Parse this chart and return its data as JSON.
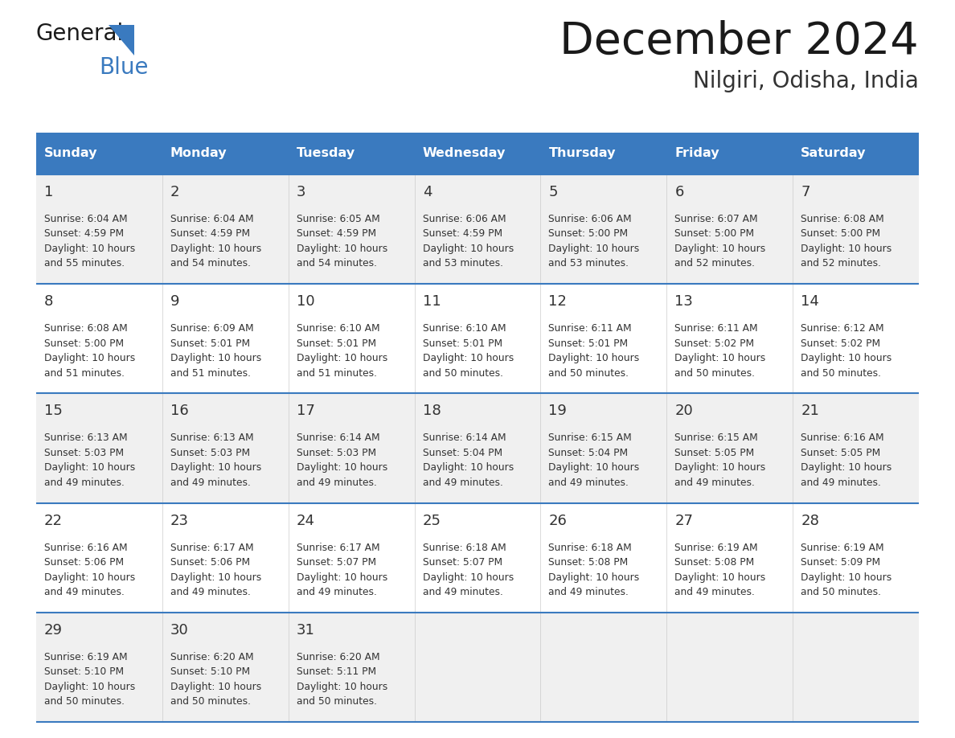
{
  "title": "December 2024",
  "subtitle": "Nilgiri, Odisha, India",
  "header_color": "#3a7abf",
  "header_text_color": "#ffffff",
  "day_names": [
    "Sunday",
    "Monday",
    "Tuesday",
    "Wednesday",
    "Thursday",
    "Friday",
    "Saturday"
  ],
  "row_bg_even": "#f0f0f0",
  "row_bg_odd": "#ffffff",
  "separator_color": "#3a7abf",
  "text_color": "#333333",
  "days": [
    {
      "day": 1,
      "col": 0,
      "row": 0,
      "sunrise": "6:04 AM",
      "sunset": "4:59 PM",
      "daylight_h": "10 hours",
      "daylight_m": "55 minutes."
    },
    {
      "day": 2,
      "col": 1,
      "row": 0,
      "sunrise": "6:04 AM",
      "sunset": "4:59 PM",
      "daylight_h": "10 hours",
      "daylight_m": "54 minutes."
    },
    {
      "day": 3,
      "col": 2,
      "row": 0,
      "sunrise": "6:05 AM",
      "sunset": "4:59 PM",
      "daylight_h": "10 hours",
      "daylight_m": "54 minutes."
    },
    {
      "day": 4,
      "col": 3,
      "row": 0,
      "sunrise": "6:06 AM",
      "sunset": "4:59 PM",
      "daylight_h": "10 hours",
      "daylight_m": "53 minutes."
    },
    {
      "day": 5,
      "col": 4,
      "row": 0,
      "sunrise": "6:06 AM",
      "sunset": "5:00 PM",
      "daylight_h": "10 hours",
      "daylight_m": "53 minutes."
    },
    {
      "day": 6,
      "col": 5,
      "row": 0,
      "sunrise": "6:07 AM",
      "sunset": "5:00 PM",
      "daylight_h": "10 hours",
      "daylight_m": "52 minutes."
    },
    {
      "day": 7,
      "col": 6,
      "row": 0,
      "sunrise": "6:08 AM",
      "sunset": "5:00 PM",
      "daylight_h": "10 hours",
      "daylight_m": "52 minutes."
    },
    {
      "day": 8,
      "col": 0,
      "row": 1,
      "sunrise": "6:08 AM",
      "sunset": "5:00 PM",
      "daylight_h": "10 hours",
      "daylight_m": "51 minutes."
    },
    {
      "day": 9,
      "col": 1,
      "row": 1,
      "sunrise": "6:09 AM",
      "sunset": "5:01 PM",
      "daylight_h": "10 hours",
      "daylight_m": "51 minutes."
    },
    {
      "day": 10,
      "col": 2,
      "row": 1,
      "sunrise": "6:10 AM",
      "sunset": "5:01 PM",
      "daylight_h": "10 hours",
      "daylight_m": "51 minutes."
    },
    {
      "day": 11,
      "col": 3,
      "row": 1,
      "sunrise": "6:10 AM",
      "sunset": "5:01 PM",
      "daylight_h": "10 hours",
      "daylight_m": "50 minutes."
    },
    {
      "day": 12,
      "col": 4,
      "row": 1,
      "sunrise": "6:11 AM",
      "sunset": "5:01 PM",
      "daylight_h": "10 hours",
      "daylight_m": "50 minutes."
    },
    {
      "day": 13,
      "col": 5,
      "row": 1,
      "sunrise": "6:11 AM",
      "sunset": "5:02 PM",
      "daylight_h": "10 hours",
      "daylight_m": "50 minutes."
    },
    {
      "day": 14,
      "col": 6,
      "row": 1,
      "sunrise": "6:12 AM",
      "sunset": "5:02 PM",
      "daylight_h": "10 hours",
      "daylight_m": "50 minutes."
    },
    {
      "day": 15,
      "col": 0,
      "row": 2,
      "sunrise": "6:13 AM",
      "sunset": "5:03 PM",
      "daylight_h": "10 hours",
      "daylight_m": "49 minutes."
    },
    {
      "day": 16,
      "col": 1,
      "row": 2,
      "sunrise": "6:13 AM",
      "sunset": "5:03 PM",
      "daylight_h": "10 hours",
      "daylight_m": "49 minutes."
    },
    {
      "day": 17,
      "col": 2,
      "row": 2,
      "sunrise": "6:14 AM",
      "sunset": "5:03 PM",
      "daylight_h": "10 hours",
      "daylight_m": "49 minutes."
    },
    {
      "day": 18,
      "col": 3,
      "row": 2,
      "sunrise": "6:14 AM",
      "sunset": "5:04 PM",
      "daylight_h": "10 hours",
      "daylight_m": "49 minutes."
    },
    {
      "day": 19,
      "col": 4,
      "row": 2,
      "sunrise": "6:15 AM",
      "sunset": "5:04 PM",
      "daylight_h": "10 hours",
      "daylight_m": "49 minutes."
    },
    {
      "day": 20,
      "col": 5,
      "row": 2,
      "sunrise": "6:15 AM",
      "sunset": "5:05 PM",
      "daylight_h": "10 hours",
      "daylight_m": "49 minutes."
    },
    {
      "day": 21,
      "col": 6,
      "row": 2,
      "sunrise": "6:16 AM",
      "sunset": "5:05 PM",
      "daylight_h": "10 hours",
      "daylight_m": "49 minutes."
    },
    {
      "day": 22,
      "col": 0,
      "row": 3,
      "sunrise": "6:16 AM",
      "sunset": "5:06 PM",
      "daylight_h": "10 hours",
      "daylight_m": "49 minutes."
    },
    {
      "day": 23,
      "col": 1,
      "row": 3,
      "sunrise": "6:17 AM",
      "sunset": "5:06 PM",
      "daylight_h": "10 hours",
      "daylight_m": "49 minutes."
    },
    {
      "day": 24,
      "col": 2,
      "row": 3,
      "sunrise": "6:17 AM",
      "sunset": "5:07 PM",
      "daylight_h": "10 hours",
      "daylight_m": "49 minutes."
    },
    {
      "day": 25,
      "col": 3,
      "row": 3,
      "sunrise": "6:18 AM",
      "sunset": "5:07 PM",
      "daylight_h": "10 hours",
      "daylight_m": "49 minutes."
    },
    {
      "day": 26,
      "col": 4,
      "row": 3,
      "sunrise": "6:18 AM",
      "sunset": "5:08 PM",
      "daylight_h": "10 hours",
      "daylight_m": "49 minutes."
    },
    {
      "day": 27,
      "col": 5,
      "row": 3,
      "sunrise": "6:19 AM",
      "sunset": "5:08 PM",
      "daylight_h": "10 hours",
      "daylight_m": "49 minutes."
    },
    {
      "day": 28,
      "col": 6,
      "row": 3,
      "sunrise": "6:19 AM",
      "sunset": "5:09 PM",
      "daylight_h": "10 hours",
      "daylight_m": "50 minutes."
    },
    {
      "day": 29,
      "col": 0,
      "row": 4,
      "sunrise": "6:19 AM",
      "sunset": "5:10 PM",
      "daylight_h": "10 hours",
      "daylight_m": "50 minutes."
    },
    {
      "day": 30,
      "col": 1,
      "row": 4,
      "sunrise": "6:20 AM",
      "sunset": "5:10 PM",
      "daylight_h": "10 hours",
      "daylight_m": "50 minutes."
    },
    {
      "day": 31,
      "col": 2,
      "row": 4,
      "sunrise": "6:20 AM",
      "sunset": "5:11 PM",
      "daylight_h": "10 hours",
      "daylight_m": "50 minutes."
    }
  ]
}
